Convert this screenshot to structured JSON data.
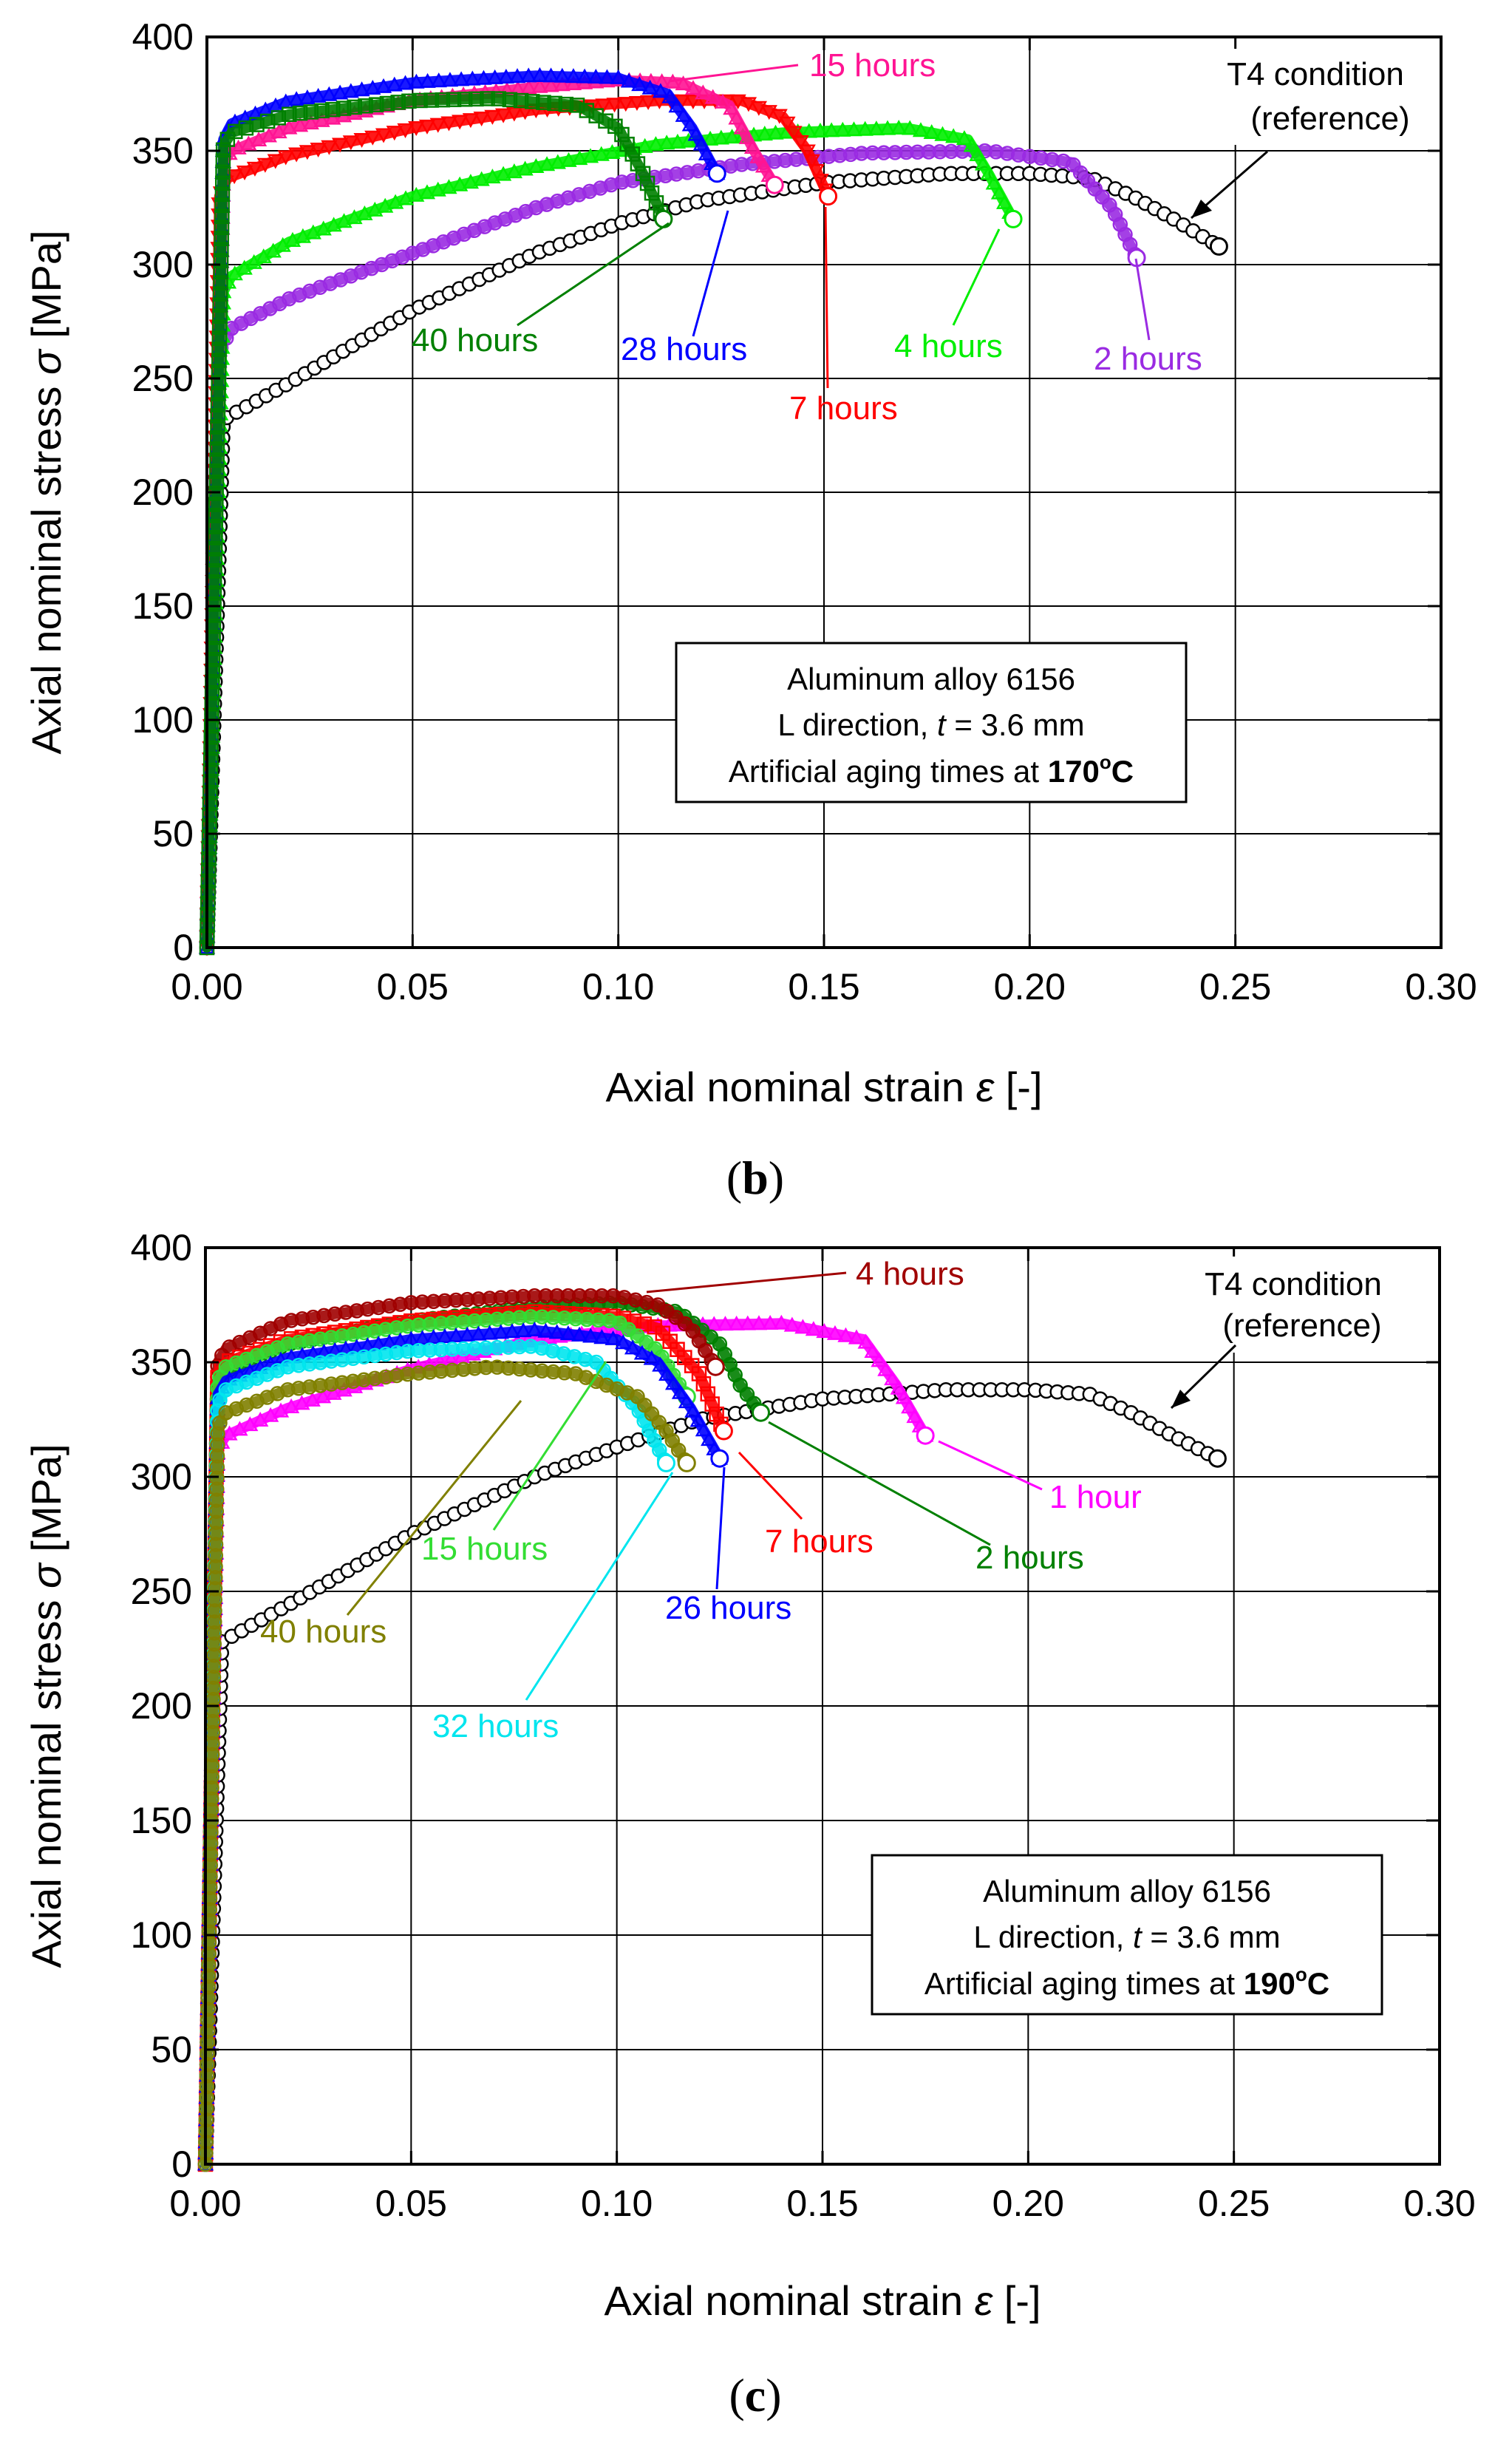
{
  "charts": [
    {
      "id": "b",
      "caption": "(b)",
      "caption_parts": {
        "open": "(",
        "letter": "b",
        "close": ")"
      },
      "xlabel_parts": {
        "text": "Axial nominal strain ",
        "symbol": "ε",
        "unit": " [-]"
      },
      "ylabel_parts": {
        "text": "Axial nominal stress ",
        "symbol": "σ",
        "unit": " [MPa]"
      },
      "legend_box": {
        "line1": "Aluminum alloy 6156",
        "line2_prefix": "L direction, ",
        "line2_var": "t",
        "line2_suffix": " = 3.6 mm",
        "line3_prefix": "Artificial aging times at ",
        "line3_temp": "170",
        "line3_deg": "o",
        "line3_unit": "C"
      },
      "reference_label": {
        "line1": "T4 condition",
        "line2": "(reference)"
      },
      "xticks": [
        "0.00",
        "0.05",
        "0.10",
        "0.15",
        "0.20",
        "0.25",
        "0.30"
      ],
      "yticks": [
        "0",
        "50",
        "100",
        "150",
        "200",
        "250",
        "300",
        "350",
        "400"
      ],
      "annotations": [
        {
          "label": "15 hours",
          "color": "#ff1493"
        },
        {
          "label": "40 hours",
          "color": "#008000"
        },
        {
          "label": "28 hours",
          "color": "#0000ff"
        },
        {
          "label": "7 hours",
          "color": "#ff0000"
        },
        {
          "label": "4 hours",
          "color": "#00ee00"
        },
        {
          "label": "2 hours",
          "color": "#9a2be2"
        }
      ]
    },
    {
      "id": "c",
      "caption": "(c)",
      "caption_parts": {
        "open": "(",
        "letter": "c",
        "close": ")"
      },
      "xlabel_parts": {
        "text": "Axial nominal strain ",
        "symbol": "ε",
        "unit": " [-]"
      },
      "ylabel_parts": {
        "text": "Axial nominal stress ",
        "symbol": "σ",
        "unit": " [MPa]"
      },
      "legend_box": {
        "line1": "Aluminum alloy 6156",
        "line2_prefix": "L direction, ",
        "line2_var": "t",
        "line2_suffix": " = 3.6 mm",
        "line3_prefix": "Artificial aging times at ",
        "line3_temp": "190",
        "line3_deg": "o",
        "line3_unit": "C"
      },
      "reference_label": {
        "line1": "T4 condition",
        "line2": "(reference)"
      },
      "xticks": [
        "0.00",
        "0.05",
        "0.10",
        "0.15",
        "0.20",
        "0.25",
        "0.30"
      ],
      "yticks": [
        "0",
        "50",
        "100",
        "150",
        "200",
        "250",
        "300",
        "350",
        "400"
      ],
      "annotations": [
        {
          "label": "4 hours",
          "color": "#a00000"
        },
        {
          "label": "15 hours",
          "color": "#33dd33"
        },
        {
          "label": "40 hours",
          "color": "#808000"
        },
        {
          "label": "7 hours",
          "color": "#ff0000"
        },
        {
          "label": "2 hours",
          "color": "#008000"
        },
        {
          "label": "1 hour",
          "color": "#ff00ff"
        },
        {
          "label": "26 hours",
          "color": "#0000ff"
        },
        {
          "label": "32 hours",
          "color": "#00e5ee"
        }
      ]
    }
  ],
  "chart_data": [
    {
      "type": "line",
      "title": "",
      "xlabel": "Axial nominal strain ε [-]",
      "ylabel": "Axial nominal stress σ [MPa]",
      "xlim": [
        0,
        0.3
      ],
      "ylim": [
        0,
        400
      ],
      "grid": true,
      "series": [
        {
          "name": "T4 condition (reference)",
          "color": "#000000",
          "marker": "circle",
          "x": [
            0,
            0.004,
            0.008,
            0.02,
            0.05,
            0.08,
            0.1,
            0.12,
            0.15,
            0.18,
            0.2,
            0.215,
            0.225,
            0.235,
            0.246
          ],
          "y": [
            0,
            232,
            236,
            248,
            280,
            305,
            318,
            328,
            336,
            340,
            340,
            338,
            330,
            320,
            308
          ]
        },
        {
          "name": "2 hours",
          "color": "#9a2be2",
          "marker": "circle",
          "x": [
            0,
            0.003,
            0.006,
            0.02,
            0.05,
            0.08,
            0.1,
            0.13,
            0.16,
            0.19,
            0.21,
            0.22,
            0.226
          ],
          "y": [
            0,
            262,
            272,
            285,
            305,
            325,
            336,
            344,
            349,
            350,
            345,
            325,
            303
          ]
        },
        {
          "name": "4 hours",
          "color": "#00ee00",
          "marker": "triangle",
          "x": [
            0,
            0.004,
            0.006,
            0.02,
            0.05,
            0.08,
            0.11,
            0.14,
            0.17,
            0.185,
            0.19,
            0.196
          ],
          "y": [
            0,
            288,
            295,
            310,
            330,
            343,
            353,
            358,
            360,
            355,
            340,
            320
          ]
        },
        {
          "name": "7 hours",
          "color": "#ff0000",
          "marker": "triangle-down",
          "x": [
            0,
            0.003,
            0.005,
            0.02,
            0.05,
            0.08,
            0.11,
            0.13,
            0.14,
            0.146,
            0.151
          ],
          "y": [
            0,
            330,
            338,
            348,
            360,
            368,
            372,
            372,
            365,
            350,
            330
          ]
        },
        {
          "name": "15 hours",
          "color": "#ff1493",
          "marker": "triangle",
          "x": [
            0,
            0.004,
            0.006,
            0.02,
            0.05,
            0.08,
            0.1,
            0.115,
            0.127,
            0.133,
            0.138
          ],
          "y": [
            0,
            345,
            350,
            360,
            372,
            378,
            381,
            380,
            370,
            350,
            335
          ]
        },
        {
          "name": "28 hours",
          "color": "#0000ff",
          "marker": "triangle",
          "x": [
            0,
            0.004,
            0.006,
            0.02,
            0.05,
            0.08,
            0.1,
            0.112,
            0.118,
            0.124
          ],
          "y": [
            0,
            355,
            362,
            372,
            380,
            383,
            382,
            375,
            360,
            340
          ]
        },
        {
          "name": "40 hours",
          "color": "#008000",
          "marker": "square",
          "x": [
            0,
            0.004,
            0.006,
            0.02,
            0.05,
            0.07,
            0.09,
            0.1,
            0.106,
            0.111
          ],
          "y": [
            0,
            352,
            358,
            366,
            372,
            373,
            370,
            360,
            340,
            320
          ]
        }
      ]
    },
    {
      "type": "line",
      "title": "",
      "xlabel": "Axial nominal strain ε [-]",
      "ylabel": "Axial nominal stress σ [MPa]",
      "xlim": [
        0,
        0.3
      ],
      "ylim": [
        0,
        400
      ],
      "grid": true,
      "series": [
        {
          "name": "T4 condition (reference)",
          "color": "#000000",
          "marker": "circle",
          "x": [
            0,
            0.004,
            0.008,
            0.02,
            0.05,
            0.08,
            0.1,
            0.12,
            0.15,
            0.18,
            0.2,
            0.215,
            0.225,
            0.235,
            0.246
          ],
          "y": [
            0,
            228,
            232,
            244,
            275,
            300,
            313,
            325,
            334,
            338,
            338,
            336,
            328,
            318,
            308
          ]
        },
        {
          "name": "1 hour",
          "color": "#ff00ff",
          "marker": "triangle",
          "x": [
            0,
            0.003,
            0.005,
            0.02,
            0.05,
            0.08,
            0.11,
            0.14,
            0.16,
            0.168,
            0.175
          ],
          "y": [
            0,
            312,
            318,
            330,
            347,
            360,
            366,
            367,
            360,
            340,
            318
          ]
        },
        {
          "name": "2 hours",
          "color": "#008000",
          "marker": "circle",
          "x": [
            0,
            0.003,
            0.005,
            0.02,
            0.05,
            0.08,
            0.1,
            0.115,
            0.125,
            0.13,
            0.135
          ],
          "y": [
            0,
            340,
            346,
            358,
            368,
            374,
            376,
            372,
            358,
            340,
            328
          ]
        },
        {
          "name": "4 hours",
          "color": "#a00000",
          "marker": "circle",
          "x": [
            0,
            0.003,
            0.005,
            0.02,
            0.05,
            0.08,
            0.1,
            0.11,
            0.118,
            0.124
          ],
          "y": [
            0,
            350,
            356,
            368,
            376,
            379,
            379,
            375,
            365,
            348
          ]
        },
        {
          "name": "7 hours",
          "color": "#ff0000",
          "marker": "square",
          "x": [
            0,
            0.003,
            0.005,
            0.02,
            0.05,
            0.08,
            0.1,
            0.11,
            0.12,
            0.126
          ],
          "y": [
            0,
            345,
            350,
            360,
            368,
            372,
            370,
            365,
            345,
            320
          ]
        },
        {
          "name": "15 hours",
          "color": "#33dd33",
          "marker": "circle",
          "x": [
            0,
            0.003,
            0.005,
            0.02,
            0.05,
            0.08,
            0.1,
            0.11,
            0.117
          ],
          "y": [
            0,
            342,
            348,
            358,
            366,
            370,
            368,
            355,
            335
          ]
        },
        {
          "name": "26 hours",
          "color": "#0000ff",
          "marker": "triangle",
          "x": [
            0,
            0.003,
            0.005,
            0.02,
            0.05,
            0.08,
            0.1,
            0.11,
            0.118,
            0.125
          ],
          "y": [
            0,
            336,
            342,
            352,
            360,
            364,
            360,
            350,
            330,
            308
          ]
        },
        {
          "name": "32 hours",
          "color": "#00e5ee",
          "marker": "circle",
          "x": [
            0,
            0.003,
            0.005,
            0.02,
            0.05,
            0.08,
            0.095,
            0.105,
            0.112
          ],
          "y": [
            0,
            332,
            338,
            348,
            355,
            357,
            350,
            330,
            306
          ]
        },
        {
          "name": "40 hours",
          "color": "#808000",
          "marker": "circle",
          "x": [
            0,
            0.003,
            0.005,
            0.02,
            0.05,
            0.07,
            0.09,
            0.105,
            0.112,
            0.117
          ],
          "y": [
            0,
            322,
            328,
            338,
            345,
            348,
            345,
            335,
            320,
            306
          ]
        }
      ]
    }
  ]
}
